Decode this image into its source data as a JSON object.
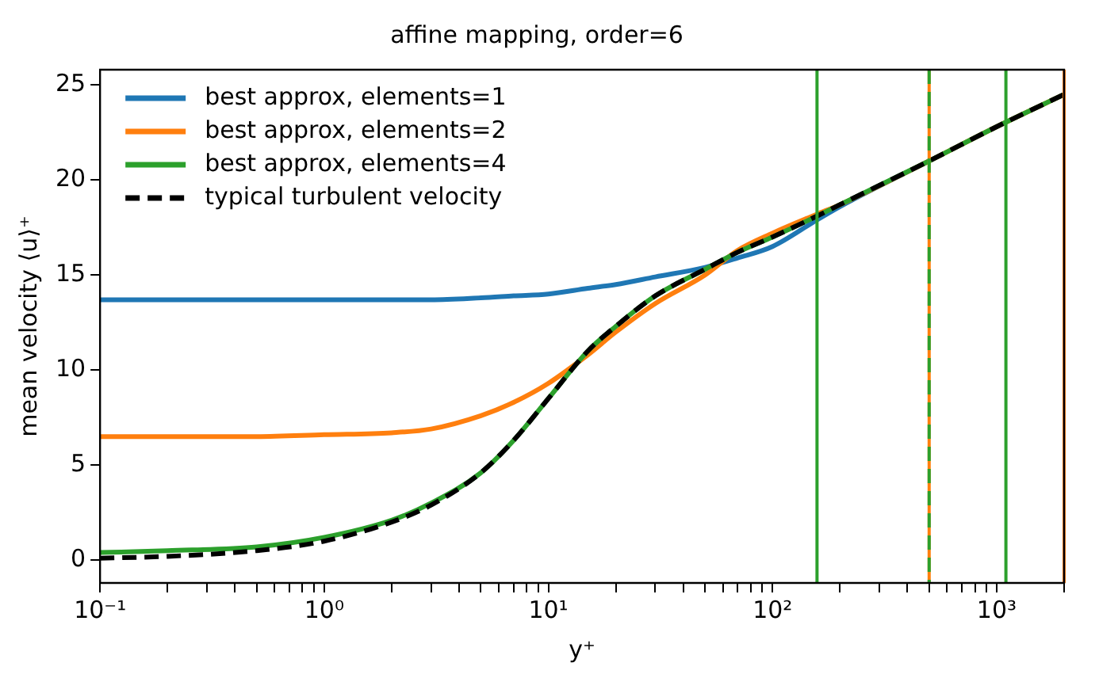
{
  "chart_data": {
    "type": "line",
    "title": "affine mapping, order=6",
    "xlabel": "y⁺",
    "ylabel": "mean velocity ⟨u⟩⁺",
    "log": "x",
    "grid": false,
    "legend": "top left",
    "marker": "none",
    "x": [
      0.1,
      0.2,
      0.5,
      1,
      2,
      3,
      5,
      7,
      10,
      15,
      20,
      30,
      50,
      70,
      100,
      158,
      200,
      500,
      1000,
      2000
    ],
    "series": [
      {
        "name": "best approx, elements=1",
        "color": "#1f77b4",
        "values": [
          13.7,
          13.7,
          13.7,
          13.7,
          13.7,
          13.7,
          13.8,
          13.9,
          14.0,
          14.3,
          14.5,
          14.9,
          15.4,
          15.9,
          16.5,
          17.9,
          18.6,
          21.0,
          null,
          null
        ]
      },
      {
        "name": "best approx, elements=2",
        "color": "#ff7f0e",
        "values": [
          6.5,
          6.5,
          6.5,
          6.6,
          6.7,
          6.9,
          7.6,
          8.3,
          9.3,
          10.8,
          12.0,
          13.5,
          15.0,
          16.3,
          17.2,
          18.2,
          18.7,
          21.0,
          22.8,
          24.5
        ]
      },
      {
        "name": "best approx, elements=4",
        "color": "#2ca02c",
        "values": [
          0.4,
          0.5,
          0.7,
          1.2,
          2.1,
          3.0,
          4.6,
          6.3,
          8.5,
          11.0,
          12.3,
          13.9,
          15.3,
          16.2,
          17.0,
          18.1,
          18.7,
          21.0,
          22.8,
          24.5
        ]
      },
      {
        "name": "typical turbulent velocity",
        "color": "#000000",
        "line_style": "dashed",
        "values": [
          0.1,
          0.2,
          0.5,
          1.0,
          2.0,
          2.9,
          4.6,
          6.3,
          8.5,
          11.0,
          12.3,
          13.9,
          15.3,
          16.2,
          17.0,
          18.1,
          18.7,
          21.0,
          22.8,
          24.5
        ]
      }
    ],
    "xlim": [
      0.1,
      2000
    ],
    "ylim": [
      -1.2,
      25.8
    ],
    "xticks": [
      {
        "value": 0.1,
        "label": "10⁻¹"
      },
      {
        "value": 0.2,
        "label": null
      },
      {
        "value": 0.3,
        "label": null
      },
      {
        "value": 0.4,
        "label": null
      },
      {
        "value": 0.5,
        "label": null
      },
      {
        "value": 0.6,
        "label": null
      },
      {
        "value": 0.7,
        "label": null
      },
      {
        "value": 0.8,
        "label": null
      },
      {
        "value": 0.9,
        "label": null
      },
      {
        "value": 1,
        "label": "10⁰"
      },
      {
        "value": 2,
        "label": null
      },
      {
        "value": 3,
        "label": null
      },
      {
        "value": 4,
        "label": null
      },
      {
        "value": 5,
        "label": null
      },
      {
        "value": 6,
        "label": null
      },
      {
        "value": 7,
        "label": null
      },
      {
        "value": 8,
        "label": null
      },
      {
        "value": 9,
        "label": null
      },
      {
        "value": 10,
        "label": "10¹"
      },
      {
        "value": 20,
        "label": null
      },
      {
        "value": 30,
        "label": null
      },
      {
        "value": 40,
        "label": null
      },
      {
        "value": 50,
        "label": null
      },
      {
        "value": 60,
        "label": null
      },
      {
        "value": 70,
        "label": null
      },
      {
        "value": 80,
        "label": null
      },
      {
        "value": 90,
        "label": null
      },
      {
        "value": 100,
        "label": "10²"
      },
      {
        "value": 200,
        "label": null
      },
      {
        "value": 300,
        "label": null
      },
      {
        "value": 400,
        "label": null
      },
      {
        "value": 500,
        "label": null
      },
      {
        "value": 600,
        "label": null
      },
      {
        "value": 700,
        "label": null
      },
      {
        "value": 800,
        "label": null
      },
      {
        "value": 900,
        "label": null
      },
      {
        "value": 1000,
        "label": "10³"
      },
      {
        "value": 2000,
        "label": null
      }
    ],
    "yticks": [
      0,
      5,
      10,
      15,
      20,
      25
    ],
    "ref_lines": [
      {
        "axis": "x",
        "value": 158,
        "color": "#2ca02c"
      },
      {
        "axis": "x",
        "value": 500,
        "color": "#ff7f0e"
      },
      {
        "axis": "x",
        "value": 500,
        "color": "#2ca02c",
        "line_style": "dashed"
      },
      {
        "axis": "x",
        "value": 1100,
        "color": "#2ca02c"
      },
      {
        "axis": "x",
        "value": 2000,
        "color": "#ff7f0e"
      }
    ]
  }
}
